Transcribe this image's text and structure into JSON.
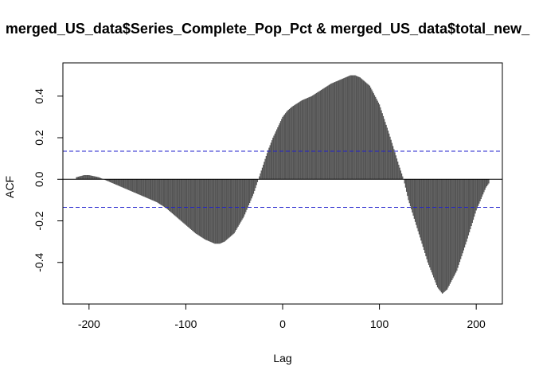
{
  "chart_data": {
    "type": "bar",
    "title": "merged_US_data$Series_Complete_Pop_Pct & merged_US_data$total_new_",
    "xlabel": "Lag",
    "ylabel": "ACF",
    "xlim": [
      -227,
      227
    ],
    "ylim": [
      -0.6,
      0.56
    ],
    "x_ticks": [
      -200,
      -100,
      0,
      100,
      200
    ],
    "x_tick_labels": [
      "-200",
      "-100",
      "0",
      "100",
      "200"
    ],
    "y_ticks": [
      -0.4,
      -0.2,
      0.0,
      0.2,
      0.4
    ],
    "y_tick_labels": [
      "-0.4",
      "-0.2",
      "0.0",
      "0.2",
      "0.4"
    ],
    "confidence_bound": 0.135,
    "bar_color": "#555555",
    "ci_color": "#2222cc",
    "lag_min": -213,
    "lag_max": 213,
    "acf_profile": [
      [
        -213,
        0.01
      ],
      [
        -205,
        0.02
      ],
      [
        -200,
        0.02
      ],
      [
        -190,
        0.01
      ],
      [
        -180,
        -0.01
      ],
      [
        -170,
        -0.03
      ],
      [
        -160,
        -0.05
      ],
      [
        -150,
        -0.07
      ],
      [
        -140,
        -0.09
      ],
      [
        -130,
        -0.11
      ],
      [
        -120,
        -0.14
      ],
      [
        -110,
        -0.18
      ],
      [
        -100,
        -0.22
      ],
      [
        -90,
        -0.26
      ],
      [
        -80,
        -0.29
      ],
      [
        -70,
        -0.31
      ],
      [
        -65,
        -0.31
      ],
      [
        -60,
        -0.3
      ],
      [
        -50,
        -0.26
      ],
      [
        -40,
        -0.18
      ],
      [
        -30,
        -0.07
      ],
      [
        -25,
        0.0
      ],
      [
        -20,
        0.07
      ],
      [
        -15,
        0.14
      ],
      [
        -10,
        0.2
      ],
      [
        -5,
        0.25
      ],
      [
        0,
        0.3
      ],
      [
        5,
        0.33
      ],
      [
        10,
        0.35
      ],
      [
        20,
        0.38
      ],
      [
        30,
        0.4
      ],
      [
        40,
        0.43
      ],
      [
        50,
        0.46
      ],
      [
        60,
        0.48
      ],
      [
        70,
        0.5
      ],
      [
        75,
        0.5
      ],
      [
        80,
        0.49
      ],
      [
        90,
        0.45
      ],
      [
        100,
        0.36
      ],
      [
        110,
        0.22
      ],
      [
        120,
        0.07
      ],
      [
        125,
        0.0
      ],
      [
        130,
        -0.1
      ],
      [
        140,
        -0.25
      ],
      [
        150,
        -0.4
      ],
      [
        160,
        -0.52
      ],
      [
        165,
        -0.55
      ],
      [
        170,
        -0.53
      ],
      [
        180,
        -0.44
      ],
      [
        190,
        -0.3
      ],
      [
        200,
        -0.15
      ],
      [
        210,
        -0.04
      ],
      [
        213,
        -0.02
      ]
    ]
  }
}
